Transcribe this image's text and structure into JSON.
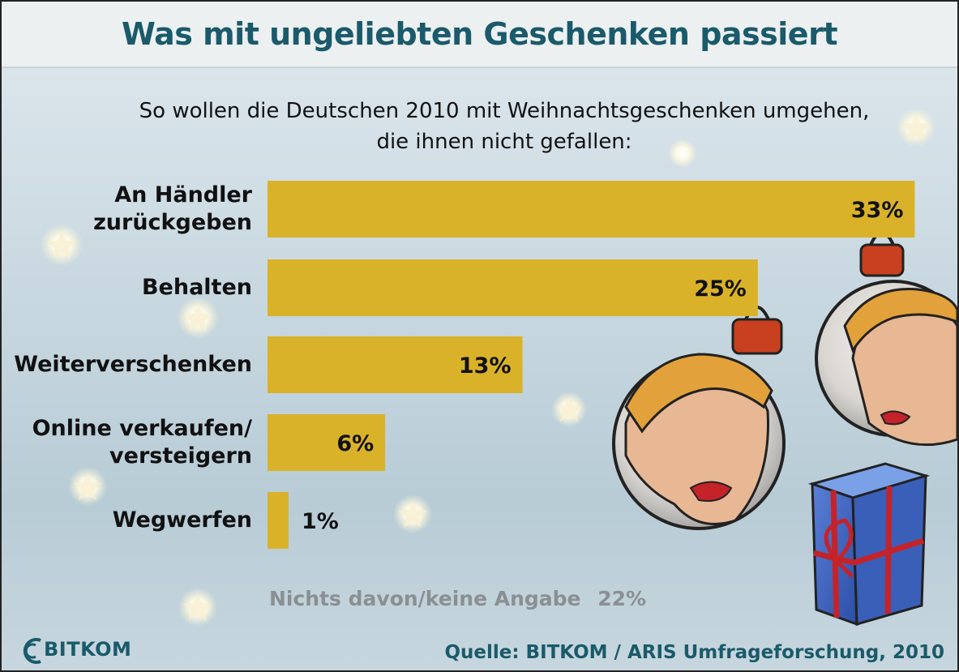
{
  "title": "Was mit ungeliebten Geschenken passiert",
  "subtitle_line1": "So wollen die Deutschen 2010 mit Weihnachtsgeschenken umgehen,",
  "subtitle_line2": "die ihnen nicht gefallen:",
  "nothing_label": "Nichts davon/keine Angabe",
  "nothing_value": "22%",
  "source": "Quelle: BITKOM / ARIS Umfrageforschung, 2010",
  "logo_text": "BITKOM",
  "colors": {
    "bar": "#d9b22a",
    "title": "#1a5a6a",
    "muted": "#8a8f93"
  },
  "chart_data": {
    "type": "bar",
    "orientation": "horizontal",
    "categories": [
      "An Händler zurückgeben",
      "Behalten",
      "Weiterverschenken",
      "Online verkaufen/ versteigern",
      "Wegwerfen"
    ],
    "category_lines": [
      [
        "An Händler",
        "zurückgeben"
      ],
      [
        "Behalten"
      ],
      [
        "Weiterverschenken"
      ],
      [
        "Online verkaufen/",
        "versteigern"
      ],
      [
        "Wegwerfen"
      ]
    ],
    "values": [
      33,
      25,
      13,
      6,
      1
    ],
    "value_labels": [
      "33%",
      "25%",
      "13%",
      "6%",
      "1%"
    ],
    "unit": "%",
    "xlim": [
      0,
      34
    ]
  }
}
